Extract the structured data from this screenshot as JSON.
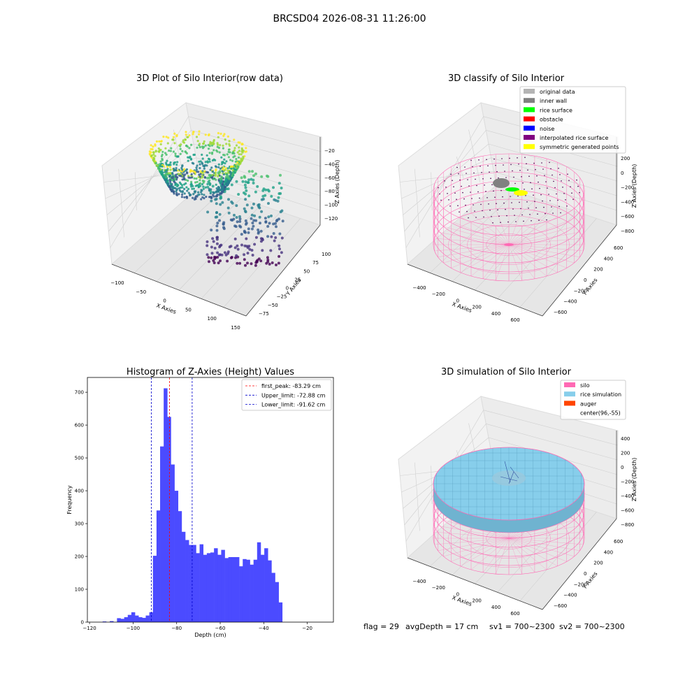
{
  "suptitle": "BRCSD04 2026-08-31 11:26:00",
  "footer": {
    "flag": "flag = 29",
    "avg_depth": "avgDepth = 17 cm",
    "sv1": "sv1 = 700~2300",
    "sv2": "sv2 = 700~2300"
  },
  "colors": {
    "hist_bar": "#4b4bff",
    "peak_line": "#ff0000",
    "limit_line": "#0000cc",
    "silo": "#ff69b4",
    "rice_simulation": "#87ceeb",
    "auger": "#ff4500",
    "pane": "#f2f2f2",
    "grid": "#d0d0d0"
  },
  "chart_data": [
    {
      "type": "scatter",
      "title": "3D Plot of Silo Interior(row data)",
      "xlabel": "X Axies",
      "ylabel": "Y Axies",
      "zlabel": "Z Axies (Depth)",
      "x_ticks": [
        "−100",
        "−50",
        "0",
        "50",
        "100",
        "150"
      ],
      "y_ticks": [
        "−75",
        "−50",
        "−25",
        "0",
        "25",
        "50",
        "75",
        "100"
      ],
      "z_ticks": [
        "−120",
        "−100",
        "−80",
        "−60",
        "−40",
        "−20"
      ],
      "xlim": [
        -120,
        160
      ],
      "ylim": [
        -80,
        110
      ],
      "zlim": [
        -125,
        -15
      ],
      "colormap": "viridis"
    },
    {
      "type": "scatter",
      "title": "3D classify of Silo Interior",
      "xlabel": "X Axies",
      "ylabel": "Y Axies",
      "zlabel": "Z Axies (Depth)",
      "x_ticks": [
        "−400",
        "−200",
        "0",
        "200",
        "400",
        "600"
      ],
      "y_ticks": [
        "−600",
        "−400",
        "−200",
        "0",
        "200",
        "400",
        "600"
      ],
      "z_ticks": [
        "−800",
        "−600",
        "−400",
        "−200",
        "0",
        "200"
      ],
      "legend": [
        {
          "label": "original data",
          "color": "#b4b4b4"
        },
        {
          "label": "inner wall",
          "color": "#808080"
        },
        {
          "label": "rice surface",
          "color": "#00ff00"
        },
        {
          "label": "obstacle",
          "color": "#ff0000"
        },
        {
          "label": "noise",
          "color": "#0000ff"
        },
        {
          "label": "interpolated rice surface",
          "color": "#800080"
        },
        {
          "label": "symmetric generated points",
          "color": "#ffff00"
        }
      ],
      "legend_position": "upper-right"
    },
    {
      "type": "bar",
      "title": "Histogram of Z-Axies (Height) Values",
      "xlabel": "Depth (cm)",
      "ylabel": "Frequency",
      "xlim": [
        -121,
        -8
      ],
      "ylim": [
        0,
        745
      ],
      "x_ticks": [
        -120,
        -100,
        -80,
        -60,
        -40,
        -20
      ],
      "x_tick_labels": [
        "−120",
        "−100",
        "−80",
        "−60",
        "−40",
        "−20"
      ],
      "y_ticks": [
        0,
        100,
        200,
        300,
        400,
        500,
        600,
        700
      ],
      "bin_start": -114,
      "bin_width": 1.65,
      "values": [
        2,
        0,
        3,
        0,
        12,
        10,
        15,
        22,
        30,
        20,
        15,
        13,
        20,
        30,
        202,
        340,
        535,
        712,
        625,
        480,
        400,
        338,
        275,
        250,
        235,
        235,
        210,
        237,
        205,
        210,
        212,
        225,
        205,
        220,
        195,
        198,
        198,
        198,
        170,
        192,
        190,
        175,
        190,
        243,
        205,
        225,
        188,
        150,
        122,
        60
      ],
      "vlines": [
        {
          "label": "first_peak: -83.29 cm",
          "x": -83.29,
          "color": "#ff0000"
        },
        {
          "label": "Upper_limit: -72.88 cm",
          "x": -72.88,
          "color": "#0000cc"
        },
        {
          "label": "Lower_limit: -91.62 cm",
          "x": -91.62,
          "color": "#0000cc"
        }
      ],
      "legend_position": "upper-right"
    },
    {
      "type": "scatter",
      "title": "3D simulation of Silo Interior",
      "xlabel": "X Axies",
      "ylabel": "Y Axies",
      "zlabel": "Z Axies (Depth)",
      "x_ticks": [
        "−400",
        "−200",
        "0",
        "200",
        "400",
        "600"
      ],
      "y_ticks": [
        "−600",
        "−400",
        "−200",
        "0",
        "200",
        "400",
        "600"
      ],
      "z_ticks": [
        "−800",
        "−600",
        "−400",
        "−200",
        "0",
        "200",
        "400"
      ],
      "legend": [
        {
          "label": "silo",
          "color": "#ff69b4"
        },
        {
          "label": "rice simulation",
          "color": "#87ceeb"
        },
        {
          "label": "auger",
          "color": "#ff4500"
        },
        {
          "label": "center(96,-55)",
          "color": ""
        }
      ],
      "legend_position": "upper-right"
    }
  ]
}
